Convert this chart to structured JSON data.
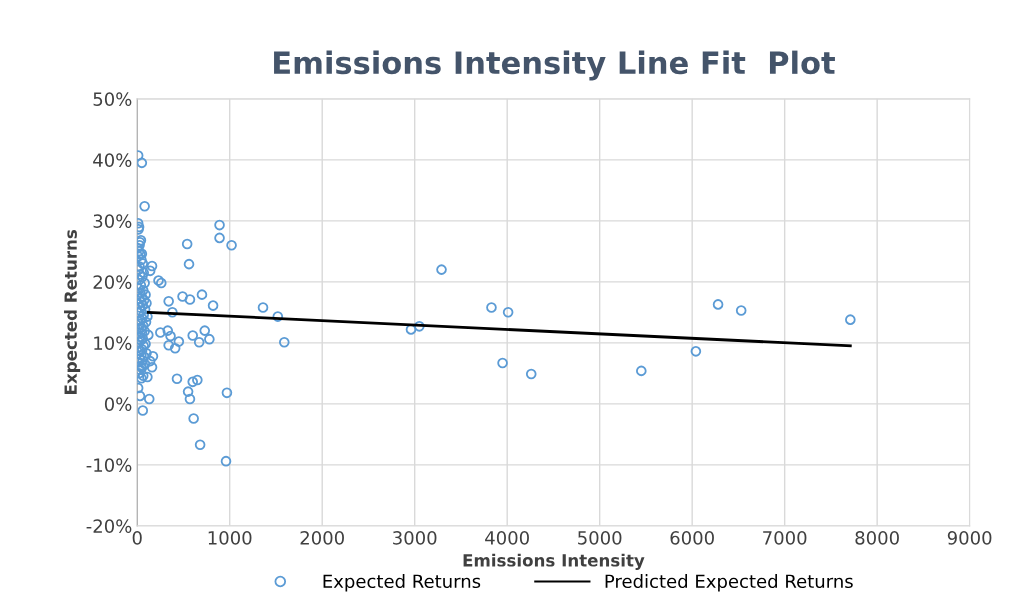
{
  "chart_data": {
    "type": "scatter",
    "title": "Emissions Intensity Line Fit  Plot",
    "xlabel": "Emissions Intensity",
    "ylabel": "Expected Returns",
    "xlim": [
      0,
      9000
    ],
    "xticks": [
      0,
      1000,
      2000,
      3000,
      4000,
      5000,
      6000,
      7000,
      8000,
      9000
    ],
    "ylim": [
      -20,
      50
    ],
    "yticks": [
      {
        "value": -20,
        "label": "-20%"
      },
      {
        "value": -10,
        "label": "-10%"
      },
      {
        "value": 0,
        "label": "0%"
      },
      {
        "value": 10,
        "label": "10%"
      },
      {
        "value": 20,
        "label": "20%"
      },
      {
        "value": 30,
        "label": "30%"
      },
      {
        "value": 40,
        "label": "40%"
      },
      {
        "value": 50,
        "label": "50%"
      }
    ],
    "grid": true,
    "legend": "bottom",
    "series": [
      {
        "name": "Expected Returns",
        "marker": "circle",
        "color": "#5b9bd5",
        "x": [
          10,
          50,
          80,
          890,
          890,
          1020,
          540,
          560,
          3290,
          160,
          140,
          230,
          260,
          700,
          570,
          490,
          340,
          820,
          1360,
          1520,
          1590,
          3830,
          4010,
          2960,
          3050,
          3950,
          4260,
          5450,
          6040,
          6280,
          6530,
          7710,
          970,
          960,
          680,
          610,
          550,
          570,
          600,
          650,
          430,
          380,
          600,
          730,
          670,
          780,
          250,
          330,
          360,
          450,
          340,
          410,
          130,
          60,
          30,
          10,
          110,
          160,
          170,
          140,
          10,
          20,
          15,
          30,
          25,
          5,
          40,
          20,
          10,
          35,
          50,
          45,
          60,
          25,
          15,
          70,
          30,
          55,
          20,
          80,
          40,
          10,
          65,
          35,
          90,
          50,
          25,
          75,
          45,
          15,
          100,
          60,
          30,
          85,
          40,
          20,
          70,
          110,
          55,
          35,
          95,
          25,
          65,
          45,
          15,
          80,
          50,
          120,
          30,
          60,
          40,
          20,
          90,
          70,
          10,
          55,
          35,
          100,
          45,
          75,
          25,
          60,
          15,
          85,
          40,
          50,
          30,
          20,
          65,
          45
        ],
        "values": [
          40.7,
          39.5,
          32.4,
          29.3,
          27.2,
          26.0,
          26.2,
          22.9,
          22.0,
          22.6,
          21.8,
          20.2,
          19.8,
          17.9,
          17.1,
          17.6,
          16.8,
          16.1,
          15.8,
          14.3,
          10.1,
          15.8,
          15.0,
          12.2,
          12.7,
          6.7,
          4.9,
          5.4,
          8.6,
          16.3,
          15.3,
          13.8,
          1.8,
          -9.4,
          -6.7,
          -2.4,
          2.0,
          0.8,
          3.6,
          3.9,
          4.1,
          15.0,
          11.2,
          12.0,
          10.1,
          10.6,
          11.7,
          12.0,
          11.1,
          10.2,
          9.6,
          9.1,
          0.8,
          -1.1,
          1.3,
          2.6,
          4.4,
          6.0,
          7.8,
          7.0,
          29.6,
          29.0,
          28.6,
          26.5,
          26.0,
          25.5,
          26.8,
          25.0,
          24.2,
          24.5,
          24.6,
          23.6,
          23.0,
          22.5,
          22.0,
          21.5,
          21.2,
          20.8,
          20.3,
          19.8,
          19.4,
          19.0,
          18.6,
          18.2,
          17.9,
          17.5,
          17.2,
          17.0,
          16.7,
          16.4,
          16.5,
          16.1,
          15.8,
          15.5,
          15.2,
          14.9,
          14.6,
          14.3,
          14.0,
          13.7,
          13.4,
          13.1,
          12.8,
          12.5,
          12.2,
          11.9,
          11.6,
          11.3,
          11.0,
          10.7,
          10.4,
          10.1,
          9.8,
          9.5,
          9.2,
          8.9,
          8.6,
          8.3,
          8.0,
          7.7,
          7.4,
          7.1,
          6.8,
          6.5,
          6.2,
          5.9,
          5.6,
          5.0,
          4.6,
          4.2
        ]
      },
      {
        "name": "Predicted Expected Returns",
        "type": "line",
        "marker": "none",
        "color": "#000000",
        "x": [
          120,
          7710
        ],
        "values": [
          15.0,
          9.5
        ]
      }
    ]
  }
}
